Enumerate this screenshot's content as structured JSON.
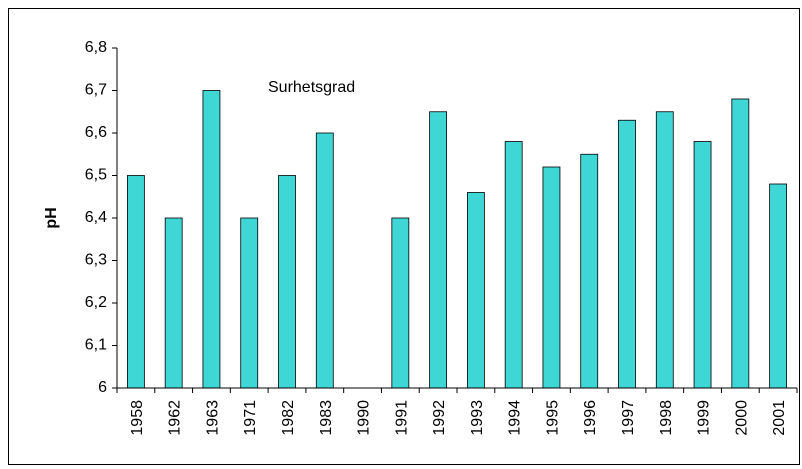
{
  "chart_data": {
    "type": "bar",
    "annotation": "Surhetsgrad",
    "y_label": "pH",
    "categories": [
      "1958",
      "1962",
      "1963",
      "1971",
      "1982",
      "1983",
      "1990",
      "1991",
      "1992",
      "1993",
      "1994",
      "1995",
      "1996",
      "1997",
      "1998",
      "1999",
      "2000",
      "2001"
    ],
    "values": [
      6.5,
      6.4,
      6.7,
      6.4,
      6.5,
      6.6,
      null,
      6.4,
      6.65,
      6.46,
      6.58,
      6.52,
      6.55,
      6.63,
      6.65,
      6.58,
      6.68,
      6.48
    ],
    "color": "#3fd6d6",
    "ylim": [
      6,
      6.8
    ],
    "yticks": [
      6,
      {
        "value": 6.1,
        "label": "6,1"
      },
      {
        "value": 6.2,
        "label": "6,2"
      },
      {
        "value": 6.3,
        "label": "6,3"
      },
      {
        "value": 6.4,
        "label": "6,4"
      },
      {
        "value": 6.5,
        "label": "6,5"
      },
      {
        "value": 6.6,
        "label": "6,6"
      },
      {
        "value": 6.7,
        "label": "6,7"
      },
      {
        "value": 6.8,
        "label": "6,8"
      }
    ],
    "grid": false
  }
}
